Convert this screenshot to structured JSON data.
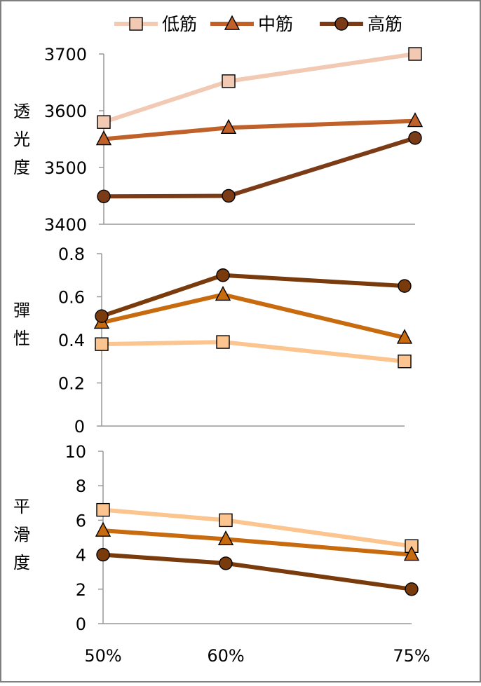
{
  "legend": {
    "entries": [
      {
        "label": "低筋",
        "marker": "square",
        "color": "#f2c9b3"
      },
      {
        "label": "中筋",
        "marker": "triangle",
        "color": "#c0612a"
      },
      {
        "label": "高筋",
        "marker": "circle",
        "color": "#7a3b16"
      }
    ]
  },
  "chart_data": [
    {
      "type": "line",
      "ylabel": "透光度",
      "ylim": [
        3400,
        3700
      ],
      "yticks": [
        3400,
        3500,
        3600,
        3700
      ],
      "categories": [
        "50%",
        "60%",
        "75%"
      ],
      "series": [
        {
          "name": "低筋",
          "marker": "square",
          "color": "#f2c9b3",
          "values": [
            3580,
            3652,
            3700
          ]
        },
        {
          "name": "中筋",
          "marker": "triangle",
          "color": "#c0612a",
          "values": [
            3550,
            3570,
            3582
          ]
        },
        {
          "name": "高筋",
          "marker": "circle",
          "color": "#7a3b16",
          "values": [
            3449,
            3450,
            3552
          ]
        }
      ]
    },
    {
      "type": "line",
      "ylabel": "彈性",
      "ylim": [
        0,
        0.8
      ],
      "yticks": [
        "0",
        "0.2",
        "0.4",
        "0.6",
        "0.8"
      ],
      "categories": [
        "50%",
        "60%",
        "75%"
      ],
      "series": [
        {
          "name": "低筋",
          "marker": "square",
          "color": "#fcc590",
          "values": [
            0.38,
            0.39,
            0.3
          ]
        },
        {
          "name": "中筋",
          "marker": "triangle",
          "color": "#c86a0e",
          "values": [
            0.48,
            0.61,
            0.41
          ]
        },
        {
          "name": "高筋",
          "marker": "circle",
          "color": "#7a3b0c",
          "values": [
            0.51,
            0.7,
            0.65
          ]
        }
      ]
    },
    {
      "type": "line",
      "ylabel": "平滑度",
      "ylim": [
        0,
        10
      ],
      "yticks": [
        0,
        2,
        4,
        6,
        8,
        10
      ],
      "categories": [
        "50%",
        "60%",
        "75%"
      ],
      "series": [
        {
          "name": "低筋",
          "marker": "square",
          "color": "#fcc590",
          "values": [
            6.6,
            6.0,
            4.5
          ]
        },
        {
          "name": "中筋",
          "marker": "triangle",
          "color": "#c86a0e",
          "values": [
            5.4,
            4.9,
            4.0
          ]
        },
        {
          "name": "高筋",
          "marker": "circle",
          "color": "#7a3b0c",
          "values": [
            4.0,
            3.5,
            2.0
          ]
        }
      ]
    }
  ]
}
